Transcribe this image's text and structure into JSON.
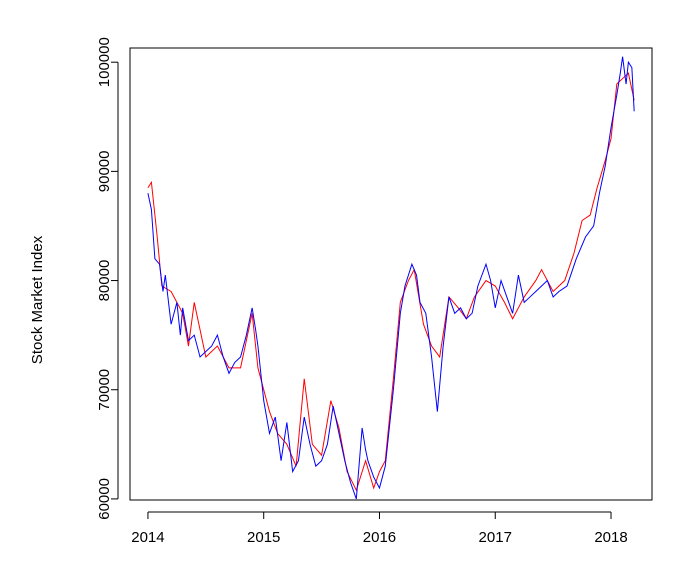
{
  "chart_data": {
    "type": "line",
    "ylabel": "Stock Market Index",
    "xlim": [
      2013.845,
      2018.354
    ],
    "ylim": [
      59900,
      101300
    ],
    "xticks": [
      2014,
      2015,
      2016,
      2017,
      2018
    ],
    "yticks": [
      60000,
      70000,
      80000,
      90000,
      100000
    ],
    "series": [
      {
        "color": "#ff0000",
        "x": [
          2014.0,
          2014.03,
          2014.08,
          2014.12,
          2014.2,
          2014.3,
          2014.35,
          2014.4,
          2014.5,
          2014.6,
          2014.7,
          2014.8,
          2014.9,
          2014.95,
          2015.05,
          2015.12,
          2015.2,
          2015.28,
          2015.35,
          2015.42,
          2015.5,
          2015.58,
          2015.65,
          2015.72,
          2015.8,
          2015.88,
          2015.95,
          2016.0,
          2016.05,
          2016.12,
          2016.18,
          2016.25,
          2016.3,
          2016.38,
          2016.45,
          2016.52,
          2016.6,
          2016.68,
          2016.75,
          2016.82,
          2016.92,
          2017.0,
          2017.08,
          2017.15,
          2017.25,
          2017.35,
          2017.4,
          2017.5,
          2017.6,
          2017.68,
          2017.75,
          2017.82,
          2017.88,
          2017.95,
          2018.0,
          2018.05,
          2018.1,
          2018.15,
          2018.2
        ],
        "values": [
          88500,
          89000,
          84000,
          79500,
          79000,
          77000,
          74000,
          78000,
          73000,
          74000,
          72000,
          72000,
          77000,
          72000,
          68000,
          66000,
          65000,
          63000,
          71000,
          65000,
          64000,
          69000,
          66500,
          62500,
          60800,
          63500,
          61000,
          62500,
          63500,
          71000,
          78000,
          80000,
          81000,
          76000,
          74000,
          73000,
          78500,
          77500,
          76500,
          78500,
          80000,
          79500,
          78000,
          76500,
          78500,
          80000,
          81000,
          79000,
          80000,
          82500,
          85500,
          86000,
          88500,
          91000,
          93000,
          98000,
          98500,
          99000,
          96500
        ]
      },
      {
        "color": "#0000ff",
        "x": [
          2014.0,
          2014.03,
          2014.06,
          2014.1,
          2014.13,
          2014.15,
          2014.2,
          2014.25,
          2014.28,
          2014.3,
          2014.35,
          2014.4,
          2014.45,
          2014.5,
          2014.55,
          2014.6,
          2014.65,
          2014.7,
          2014.75,
          2014.8,
          2014.85,
          2014.9,
          2014.93,
          2014.95,
          2015.0,
          2015.05,
          2015.1,
          2015.15,
          2015.2,
          2015.25,
          2015.3,
          2015.35,
          2015.4,
          2015.45,
          2015.5,
          2015.55,
          2015.6,
          2015.65,
          2015.7,
          2015.75,
          2015.8,
          2015.85,
          2015.88,
          2015.9,
          2015.95,
          2016.0,
          2016.05,
          2016.12,
          2016.18,
          2016.22,
          2016.28,
          2016.32,
          2016.35,
          2016.4,
          2016.45,
          2016.5,
          2016.55,
          2016.6,
          2016.65,
          2016.7,
          2016.75,
          2016.8,
          2016.85,
          2016.92,
          2016.96,
          2017.0,
          2017.05,
          2017.1,
          2017.15,
          2017.2,
          2017.25,
          2017.3,
          2017.35,
          2017.4,
          2017.45,
          2017.5,
          2017.55,
          2017.62,
          2017.7,
          2017.78,
          2017.85,
          2017.9,
          2017.95,
          2018.0,
          2018.05,
          2018.08,
          2018.1,
          2018.13,
          2018.15,
          2018.18,
          2018.2
        ],
        "values": [
          88000,
          86500,
          82000,
          81500,
          79000,
          80500,
          76000,
          78000,
          75000,
          77500,
          74500,
          75000,
          73000,
          73500,
          74000,
          75000,
          73000,
          71500,
          72500,
          73000,
          75000,
          77500,
          75500,
          74000,
          69000,
          66000,
          67500,
          63500,
          67000,
          62500,
          63500,
          67500,
          65000,
          63000,
          63500,
          65000,
          68500,
          66000,
          63500,
          61500,
          60000,
          66500,
          64500,
          63500,
          62000,
          61000,
          63000,
          70000,
          77000,
          79500,
          81500,
          80500,
          78000,
          77000,
          73000,
          68000,
          74000,
          78500,
          77000,
          77500,
          76500,
          77000,
          79500,
          81500,
          80000,
          77500,
          80000,
          78500,
          77000,
          80500,
          78000,
          78500,
          79000,
          79500,
          80000,
          78500,
          79000,
          79500,
          82000,
          84000,
          85000,
          88000,
          90500,
          94000,
          97000,
          99000,
          100500,
          98000,
          100000,
          99500,
          95500
        ]
      }
    ]
  }
}
